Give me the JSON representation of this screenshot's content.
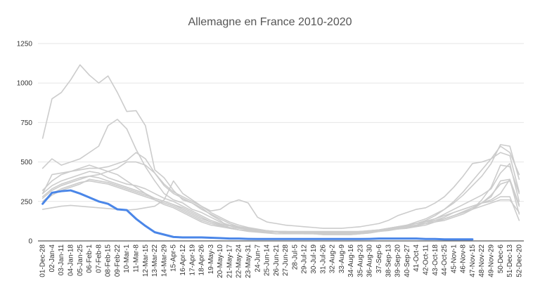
{
  "chart_data": {
    "type": "line",
    "title": "Allemagne en France 2010-2020",
    "xlabel": "",
    "ylabel": "",
    "ylim": [
      0,
      1250
    ],
    "yticks": [
      0,
      250,
      500,
      750,
      1000,
      1250
    ],
    "grid": true,
    "legend": "none",
    "colors": {
      "highlight": "#4a86e8",
      "background": "#cccccc",
      "grid": "#e6e6e6",
      "title": "#555555"
    },
    "categories": [
      "01-Dec-28",
      "02-Jan-4",
      "03-Jan-11",
      "04-Jan-18",
      "05-Jan-25",
      "06-Feb-1",
      "07-Feb-8",
      "08-Feb-15",
      "09-Feb-22",
      "10-Mar-1",
      "11-Mar-8",
      "12-Mar-15",
      "13-Mar-22",
      "14-Mar-29",
      "15-Apr-5",
      "16-Apr-12",
      "17-Apr-19",
      "18-Apr-26",
      "19-May-3",
      "20-May-10",
      "21-May-17",
      "22-May-24",
      "23-May-31",
      "24-Jun-7",
      "25-Jun-14",
      "26-Jun-21",
      "27-Jun-28",
      "28-Jul-5",
      "29-Jul-12",
      "30-Jul-19",
      "31-Jul-26",
      "32-Aug-2",
      "33-Aug-9",
      "34-Aug-16",
      "35-Aug-23",
      "36-Aug-30",
      "37-Sep-6",
      "38-Sep-13",
      "39-Sep-20",
      "40-Sep-27",
      "41-Oct-4",
      "42-Oct-11",
      "43-Oct-18",
      "44-Oct-25",
      "45-Nov-1",
      "46-Nov-8",
      "47-Nov-15",
      "48-Nov-22",
      "49-Nov-29",
      "50-Dec-6",
      "51-Dec-13",
      "52-Dec-20"
    ],
    "series": [
      {
        "highlight": true,
        "values": [
          235,
          305,
          315,
          320,
          300,
          275,
          250,
          235,
          200,
          195,
          140,
          95,
          55,
          40,
          25,
          22,
          22,
          22,
          20,
          18,
          15,
          15,
          13,
          12,
          12,
          12,
          12,
          12,
          12,
          12,
          12,
          12,
          12,
          12,
          12,
          13,
          15,
          15,
          15,
          15,
          15,
          12,
          12,
          10,
          10,
          10,
          10,
          null,
          null,
          null,
          null,
          null
        ]
      },
      {
        "values": [
          650,
          900,
          940,
          1020,
          1115,
          1050,
          1000,
          1045,
          940,
          820,
          825,
          730,
          450,
          400,
          320,
          260,
          240,
          210,
          165,
          130,
          80,
          70,
          60,
          55,
          50,
          45,
          45,
          45,
          45,
          45,
          40,
          40,
          40,
          40,
          45,
          50,
          60,
          70,
          80,
          90,
          100,
          110,
          120,
          140,
          160,
          185,
          210,
          240,
          280,
          380,
          390,
          170
        ]
      },
      {
        "values": [
          460,
          520,
          480,
          500,
          520,
          560,
          600,
          730,
          770,
          710,
          580,
          470,
          380,
          300,
          260,
          240,
          200,
          180,
          150,
          120,
          100,
          90,
          80,
          70,
          60,
          55,
          50,
          50,
          45,
          45,
          40,
          40,
          40,
          40,
          45,
          50,
          60,
          70,
          80,
          95,
          110,
          130,
          160,
          200,
          250,
          310,
          380,
          450,
          520,
          600,
          560,
          420
        ]
      },
      {
        "values": [
          300,
          350,
          380,
          400,
          420,
          440,
          430,
          400,
          380,
          360,
          350,
          330,
          300,
          270,
          250,
          220,
          190,
          160,
          130,
          110,
          95,
          85,
          75,
          70,
          65,
          60,
          55,
          55,
          50,
          50,
          50,
          50,
          50,
          50,
          55,
          60,
          65,
          75,
          85,
          100,
          120,
          140,
          170,
          200,
          240,
          290,
          350,
          410,
          490,
          610,
          600,
          390
        ]
      },
      {
        "values": [
          280,
          330,
          360,
          380,
          400,
          410,
          400,
          380,
          360,
          340,
          320,
          300,
          270,
          250,
          230,
          210,
          180,
          150,
          120,
          100,
          85,
          80,
          70,
          65,
          60,
          55,
          55,
          50,
          50,
          50,
          45,
          45,
          45,
          45,
          50,
          55,
          60,
          70,
          80,
          90,
          100,
          120,
          140,
          170,
          200,
          230,
          260,
          290,
          330,
          430,
          490,
          250
        ]
      },
      {
        "values": [
          250,
          300,
          330,
          350,
          370,
          380,
          370,
          360,
          340,
          320,
          300,
          280,
          260,
          240,
          220,
          190,
          160,
          130,
          110,
          95,
          80,
          70,
          65,
          60,
          55,
          55,
          50,
          50,
          50,
          45,
          45,
          45,
          45,
          45,
          50,
          55,
          60,
          65,
          75,
          85,
          95,
          110,
          130,
          150,
          180,
          200,
          220,
          240,
          260,
          300,
          390,
          230
        ]
      },
      {
        "values": [
          200,
          210,
          220,
          225,
          220,
          215,
          210,
          205,
          200,
          195,
          200,
          210,
          220,
          260,
          380,
          300,
          260,
          220,
          180,
          150,
          120,
          100,
          85,
          75,
          65,
          60,
          55,
          55,
          50,
          50,
          50,
          50,
          50,
          55,
          60,
          65,
          70,
          80,
          90,
          100,
          110,
          125,
          140,
          160,
          180,
          200,
          220,
          240,
          250,
          280,
          280,
          130
        ]
      },
      {
        "values": [
          320,
          380,
          420,
          440,
          460,
          480,
          460,
          440,
          420,
          380,
          340,
          300,
          260,
          230,
          210,
          180,
          150,
          120,
          100,
          90,
          80,
          70,
          65,
          60,
          55,
          55,
          55,
          50,
          50,
          50,
          50,
          50,
          50,
          50,
          55,
          60,
          65,
          70,
          75,
          80,
          90,
          100,
          120,
          140,
          160,
          180,
          200,
          240,
          290,
          360,
          380,
          220
        ]
      },
      {
        "values": [
          300,
          420,
          430,
          440,
          450,
          460,
          460,
          470,
          490,
          510,
          560,
          520,
          430,
          350,
          300,
          270,
          240,
          200,
          170,
          140,
          110,
          90,
          80,
          70,
          60,
          60,
          60,
          60,
          60,
          60,
          60,
          60,
          60,
          60,
          60,
          60,
          65,
          70,
          80,
          90,
          100,
          110,
          120,
          130,
          150,
          170,
          200,
          260,
          340,
          480,
          470,
          300
        ]
      },
      {
        "values": [
          270,
          320,
          350,
          370,
          390,
          410,
          420,
          440,
          460,
          500,
          500,
          480,
          430,
          360,
          310,
          280,
          250,
          220,
          190,
          200,
          240,
          260,
          240,
          150,
          120,
          110,
          100,
          95,
          90,
          85,
          80,
          80,
          80,
          85,
          90,
          100,
          110,
          130,
          160,
          180,
          200,
          210,
          240,
          280,
          340,
          410,
          490,
          500,
          520,
          560,
          540,
          310
        ]
      },
      {
        "values": [
          240,
          290,
          320,
          340,
          360,
          390,
          380,
          370,
          350,
          330,
          310,
          290,
          270,
          250,
          230,
          200,
          170,
          140,
          120,
          105,
          95,
          85,
          75,
          70,
          65,
          60,
          60,
          55,
          55,
          55,
          55,
          55,
          55,
          55,
          60,
          65,
          70,
          80,
          90,
          100,
          110,
          120,
          130,
          140,
          160,
          180,
          200,
          220,
          240,
          260,
          260,
          180
        ]
      }
    ]
  }
}
